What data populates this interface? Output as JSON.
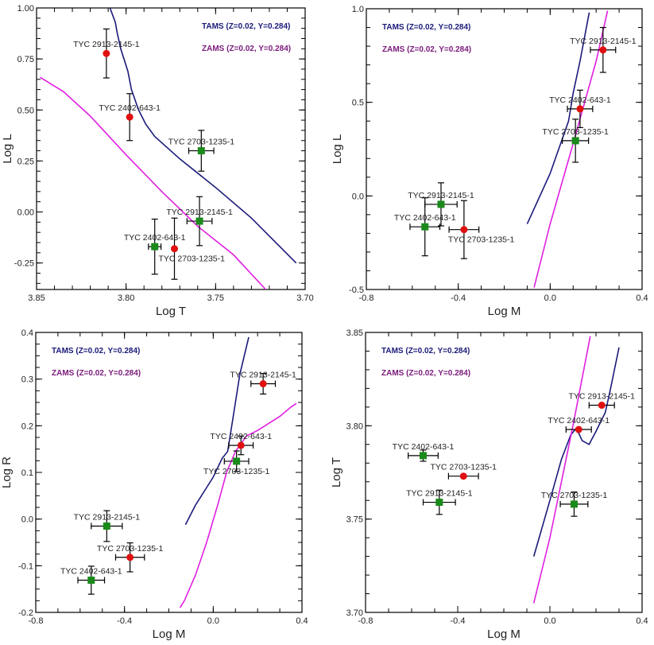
{
  "colors": {
    "tams": "#1a1a7a",
    "zams": "#e020e0",
    "zams_legend": "#7a1a7a",
    "red_marker": "#e01010",
    "green_marker": "#1a8a1a",
    "axis": "#000000"
  },
  "chart_data": [
    {
      "type": "scatter",
      "title": "",
      "xlabel": "Log T",
      "ylabel": "Log L",
      "xlim": [
        3.85,
        3.7
      ],
      "ylim": [
        -0.38,
        1.0
      ],
      "x_reversed": true,
      "xticks": [
        3.85,
        3.8,
        3.75,
        3.7
      ],
      "xtick_labels": [
        "3.85",
        "3.80",
        "3.75",
        "3.70"
      ],
      "x_minor_step": 0.01,
      "yticks": [
        -0.25,
        0.0,
        0.25,
        0.5,
        0.75,
        1.0
      ],
      "ytick_labels": [
        "-0.25",
        "0.00",
        "0.25",
        "0.50",
        "0.75",
        "1.00"
      ],
      "y_minor_step": 0.05,
      "legend": [
        {
          "label": "TAMS (Z=0.02, Y=0.284)",
          "series": "tams"
        },
        {
          "label": "ZAMS (Z=0.02, Y=0.284)",
          "series": "zams"
        }
      ],
      "legend_position": "top-right",
      "grid": false,
      "lines": [
        {
          "name": "TAMS",
          "key": "tams",
          "x": [
            3.809,
            3.806,
            3.805,
            3.803,
            3.799,
            3.797,
            3.793,
            3.789,
            3.784,
            3.77,
            3.75,
            3.73,
            3.705
          ],
          "y": [
            1.0,
            0.93,
            0.88,
            0.8,
            0.69,
            0.6,
            0.5,
            0.43,
            0.37,
            0.26,
            0.12,
            -0.03,
            -0.25
          ]
        },
        {
          "name": "ZAMS",
          "key": "zams",
          "x": [
            3.848,
            3.835,
            3.82,
            3.8,
            3.78,
            3.76,
            3.74,
            3.722
          ],
          "y": [
            0.66,
            0.59,
            0.47,
            0.28,
            0.1,
            -0.07,
            -0.21,
            -0.38
          ]
        }
      ],
      "points": [
        {
          "label": "TYC 2913-2145-1",
          "marker": "circle",
          "color": "red",
          "x": 3.811,
          "y": 0.777,
          "xerr": 0,
          "yerr": 0.12,
          "label_pos": "above"
        },
        {
          "label": "TYC 2402-643-1",
          "marker": "circle",
          "color": "red",
          "x": 3.798,
          "y": 0.465,
          "xerr": 0,
          "yerr": 0.115,
          "label_pos": "above"
        },
        {
          "label": "TYC 2703-1235-1",
          "marker": "square",
          "color": "green",
          "x": 3.758,
          "y": 0.3,
          "xerr": 0.007,
          "yerr": 0.1,
          "label_pos": "above"
        },
        {
          "label": "TYC 2913-2145-1",
          "marker": "square",
          "color": "green",
          "x": 3.759,
          "y": -0.045,
          "xerr": 0.007,
          "yerr": 0.12,
          "label_pos": "above"
        },
        {
          "label": "TYC 2402-643-1",
          "marker": "square",
          "color": "green",
          "x": 3.784,
          "y": -0.17,
          "xerr": 0.0035,
          "yerr": 0.135,
          "label_pos": "above"
        },
        {
          "label": "TYC 2703-1235-1",
          "marker": "circle",
          "color": "red",
          "x": 3.773,
          "y": -0.18,
          "xerr": 0,
          "yerr": 0.15,
          "label_pos": "below-right"
        }
      ]
    },
    {
      "type": "scatter",
      "title": "",
      "xlabel": "Log M",
      "ylabel": "Log L",
      "xlim": [
        -0.8,
        0.4
      ],
      "ylim": [
        -0.5,
        1.0
      ],
      "x_reversed": false,
      "xticks": [
        -0.8,
        -0.4,
        0.0,
        0.4
      ],
      "xtick_labels": [
        "-0.8",
        "-0.4",
        "0.0",
        "0.4"
      ],
      "x_minor_step": 0.1,
      "yticks": [
        -0.5,
        0.0,
        0.5,
        1.0
      ],
      "ytick_labels": [
        "-0.5",
        "0.0",
        "0.5",
        "1.0"
      ],
      "y_minor_step": 0.1,
      "legend": [
        {
          "label": "TAMS (Z=0.02, Y=0.284)",
          "series": "tams"
        },
        {
          "label": "ZAMS (Z=0.02, Y=0.284)",
          "series": "zams"
        }
      ],
      "legend_position": "top-left",
      "grid": false,
      "lines": [
        {
          "name": "TAMS",
          "key": "tams",
          "x": [
            -0.1,
            0.0,
            0.04,
            0.06,
            0.08,
            0.1,
            0.13,
            0.17
          ],
          "y": [
            -0.15,
            0.12,
            0.26,
            0.33,
            0.4,
            0.55,
            0.72,
            0.98
          ]
        },
        {
          "name": "ZAMS",
          "key": "zams",
          "x": [
            -0.07,
            0.0,
            0.1,
            0.2,
            0.25
          ],
          "y": [
            -0.49,
            -0.15,
            0.28,
            0.72,
            0.99
          ]
        }
      ],
      "points": [
        {
          "label": "TYC 2913-2145-1",
          "marker": "circle",
          "color": "red",
          "x": 0.23,
          "y": 0.78,
          "xerr": 0.055,
          "yerr": 0.12,
          "label_pos": "above"
        },
        {
          "label": "TYC 2402-643-1",
          "marker": "circle",
          "color": "red",
          "x": 0.13,
          "y": 0.465,
          "xerr": 0.055,
          "yerr": 0.1,
          "label_pos": "above"
        },
        {
          "label": "TYC 2703-1235-1",
          "marker": "square",
          "color": "green",
          "x": 0.11,
          "y": 0.295,
          "xerr": 0.057,
          "yerr": 0.115,
          "label_pos": "above"
        },
        {
          "label": "TYC 2913-2145-1",
          "marker": "square",
          "color": "green",
          "x": -0.475,
          "y": -0.045,
          "xerr": 0.07,
          "yerr": 0.115,
          "label_pos": "above"
        },
        {
          "label": "TYC 2402-643-1",
          "marker": "square",
          "color": "green",
          "x": -0.545,
          "y": -0.165,
          "xerr": 0.065,
          "yerr": 0.155,
          "label_pos": "above"
        },
        {
          "label": "TYC 2703-1235-1",
          "marker": "circle",
          "color": "red",
          "x": -0.375,
          "y": -0.18,
          "xerr": 0.065,
          "yerr": 0.155,
          "label_pos": "below-right"
        }
      ]
    },
    {
      "type": "scatter",
      "title": "",
      "xlabel": "Log M",
      "ylabel": "Log R",
      "xlim": [
        -0.8,
        0.4
      ],
      "ylim": [
        -0.2,
        0.4
      ],
      "x_reversed": false,
      "xticks": [
        -0.8,
        -0.4,
        0.0,
        0.4
      ],
      "xtick_labels": [
        "-0.8",
        "-0.4",
        "0.0",
        "0.4"
      ],
      "x_minor_step": 0.1,
      "yticks": [
        -0.2,
        -0.1,
        0.0,
        0.1,
        0.2,
        0.3,
        0.4
      ],
      "ytick_labels": [
        "-0.2",
        "-0.1",
        "0.0",
        "0.1",
        "0.2",
        "0.3",
        "0.4"
      ],
      "y_minor_step": 0.025,
      "legend": [
        {
          "label": "TAMS (Z=0.02, Y=0.284)",
          "series": "tams"
        },
        {
          "label": "ZAMS (Z=0.02, Y=0.284)",
          "series": "zams"
        }
      ],
      "legend_position": "top-left",
      "grid": false,
      "lines": [
        {
          "name": "TAMS",
          "key": "tams",
          "x": [
            -0.125,
            -0.08,
            -0.04,
            0.0,
            0.04,
            0.065,
            0.09,
            0.12,
            0.16
          ],
          "y": [
            -0.012,
            0.03,
            0.06,
            0.09,
            0.13,
            0.145,
            0.22,
            0.31,
            0.39
          ]
        },
        {
          "name": "ZAMS",
          "key": "zams",
          "x": [
            -0.15,
            -0.13,
            -0.08,
            -0.03,
            0.02,
            0.06,
            0.1,
            0.15,
            0.2,
            0.25,
            0.3,
            0.35,
            0.375
          ],
          "y": [
            -0.19,
            -0.175,
            -0.12,
            -0.05,
            0.03,
            0.1,
            0.145,
            0.178,
            0.19,
            0.205,
            0.22,
            0.24,
            0.248
          ]
        }
      ],
      "points": [
        {
          "label": "TYC 2913-2145-1",
          "marker": "circle",
          "color": "red",
          "x": 0.225,
          "y": 0.29,
          "xerr": 0.055,
          "yerr": 0.022,
          "label_pos": "above"
        },
        {
          "label": "TYC 2402-643-1",
          "marker": "circle",
          "color": "red",
          "x": 0.125,
          "y": 0.158,
          "xerr": 0.055,
          "yerr": 0.02,
          "label_pos": "above"
        },
        {
          "label": "TYC 2703-1235-1",
          "marker": "square",
          "color": "green",
          "x": 0.105,
          "y": 0.124,
          "xerr": 0.055,
          "yerr": 0.022,
          "label_pos": "below"
        },
        {
          "label": "TYC 2913-2145-1",
          "marker": "square",
          "color": "green",
          "x": -0.48,
          "y": -0.015,
          "xerr": 0.07,
          "yerr": 0.033,
          "label_pos": "above"
        },
        {
          "label": "TYC 2703-1235-1",
          "marker": "circle",
          "color": "red",
          "x": -0.375,
          "y": -0.082,
          "xerr": 0.065,
          "yerr": 0.031,
          "label_pos": "above"
        },
        {
          "label": "TYC 2402-643-1",
          "marker": "square",
          "color": "green",
          "x": -0.55,
          "y": -0.131,
          "xerr": 0.06,
          "yerr": 0.03,
          "label_pos": "above"
        }
      ]
    },
    {
      "type": "scatter",
      "title": "",
      "xlabel": "Log M",
      "ylabel": "Log T",
      "xlim": [
        -0.8,
        0.4
      ],
      "ylim": [
        3.7,
        3.85
      ],
      "x_reversed": false,
      "xticks": [
        -0.8,
        -0.4,
        0.0,
        0.4
      ],
      "xtick_labels": [
        "-0.8",
        "-0.4",
        "0.0",
        "0.4"
      ],
      "x_minor_step": 0.1,
      "yticks": [
        3.7,
        3.75,
        3.8,
        3.85
      ],
      "ytick_labels": [
        "3.70",
        "3.75",
        "3.80",
        "3.85"
      ],
      "y_minor_step": 0.01,
      "legend": [
        {
          "label": "TAMS (Z=0.02, Y=0.284)",
          "series": "tams"
        },
        {
          "label": "ZAMS (Z=0.02, Y=0.284)",
          "series": "zams"
        }
      ],
      "legend_position": "top-left",
      "grid": false,
      "lines": [
        {
          "name": "TAMS",
          "key": "tams",
          "x": [
            -0.07,
            0.0,
            0.05,
            0.09,
            0.11,
            0.125,
            0.14,
            0.17,
            0.2,
            0.24,
            0.26,
            0.28,
            0.3
          ],
          "y": [
            3.73,
            3.76,
            3.782,
            3.795,
            3.798,
            3.796,
            3.792,
            3.79,
            3.797,
            3.807,
            3.818,
            3.83,
            3.842
          ]
        },
        {
          "name": "ZAMS",
          "key": "zams",
          "x": [
            -0.07,
            0.0,
            0.05,
            0.1,
            0.175
          ],
          "y": [
            3.705,
            3.74,
            3.77,
            3.8,
            3.848
          ]
        }
      ],
      "points": [
        {
          "label": "TYC 2913-2145-1",
          "marker": "circle",
          "color": "red",
          "x": 0.225,
          "y": 3.811,
          "xerr": 0.055,
          "yerr": 0,
          "label_pos": "above"
        },
        {
          "label": "TYC 2402-643-1",
          "marker": "circle",
          "color": "red",
          "x": 0.125,
          "y": 3.798,
          "xerr": 0.055,
          "yerr": 0,
          "label_pos": "above"
        },
        {
          "label": "TYC 2402-643-1",
          "marker": "square",
          "color": "green",
          "x": -0.55,
          "y": 3.784,
          "xerr": 0.065,
          "yerr": 0.003,
          "label_pos": "above"
        },
        {
          "label": "TYC 2703-1235-1",
          "marker": "circle",
          "color": "red",
          "x": -0.375,
          "y": 3.773,
          "xerr": 0.065,
          "yerr": 0,
          "label_pos": "above"
        },
        {
          "label": "TYC 2913-2145-1",
          "marker": "square",
          "color": "green",
          "x": -0.48,
          "y": 3.759,
          "xerr": 0.07,
          "yerr": 0.0065,
          "label_pos": "above"
        },
        {
          "label": "TYC 2703-1235-1",
          "marker": "square",
          "color": "green",
          "x": 0.105,
          "y": 3.758,
          "xerr": 0.06,
          "yerr": 0.0065,
          "label_pos": "above"
        }
      ]
    }
  ]
}
